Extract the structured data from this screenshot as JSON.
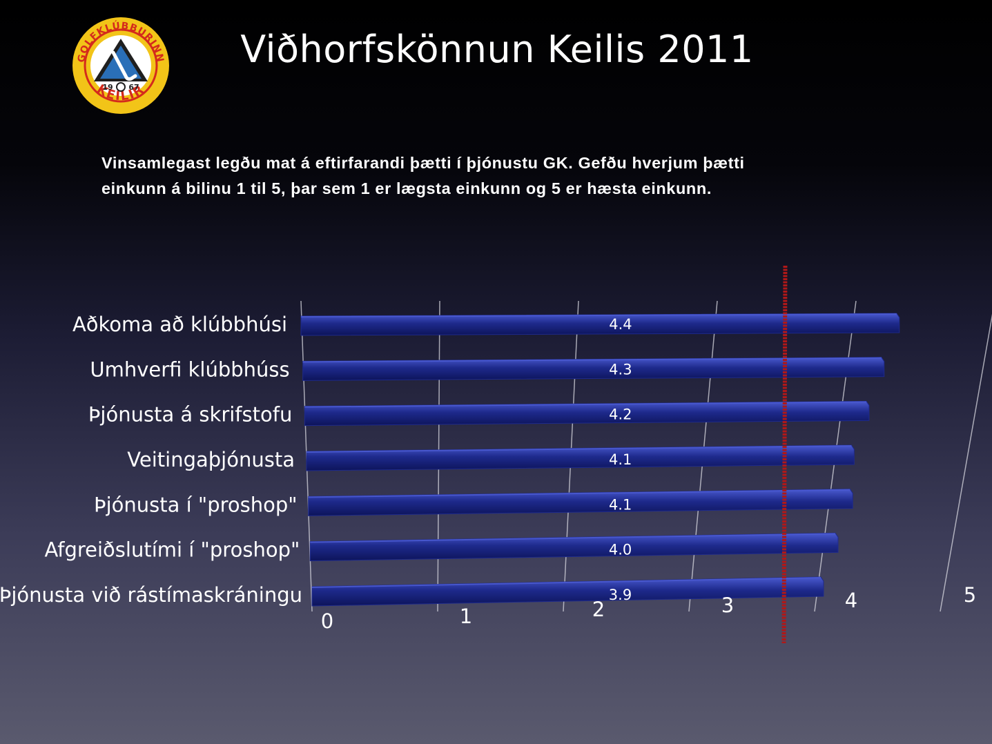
{
  "slide": {
    "title": "Viðhorfskönnun Keilis 2011",
    "subtitle": "Vinsamlegast legðu mat á eftirfarandi þætti í þjónustu GK. Gefðu hverjum þætti einkunn á bilinu 1 til 5, þar sem 1 er lægsta einkunn og 5 er hæsta einkunn."
  },
  "logo": {
    "ring_text": "GOLFKLÚBBURINN",
    "bottom_text": "KEILIR",
    "year_left": "19",
    "year_right": "67"
  },
  "colors": {
    "bar": "#1e2a8c",
    "bar_highlight": "#4a5ad0",
    "reference_line": "#b01818",
    "logo_yellow": "#f2c418",
    "logo_red": "#d42a1c",
    "logo_blue": "#2a6fb8"
  },
  "chart_data": {
    "type": "bar",
    "orientation": "horizontal",
    "categories": [
      "Aðkoma að klúbbhúsi",
      "Umhverfi klúbbhúss",
      "Þjónusta á skrifstofu",
      "Veitingaþjónusta",
      "Þjónusta í \"proshop\"",
      "Afgreiðslutími í \"proshop\"",
      "Þjónusta við rástímaskráningu"
    ],
    "values": [
      4.4,
      4.3,
      4.2,
      4.1,
      4.1,
      4.0,
      3.9
    ],
    "value_labels": [
      "4.4",
      "4.3",
      "4.2",
      "4.1",
      "4.1",
      "4.0",
      "3.9"
    ],
    "x_ticks": [
      "0",
      "1",
      "2",
      "3",
      "4",
      "5"
    ],
    "xlim": [
      0,
      5
    ],
    "reference_line": 3.5,
    "grid": true,
    "legend": "none"
  }
}
